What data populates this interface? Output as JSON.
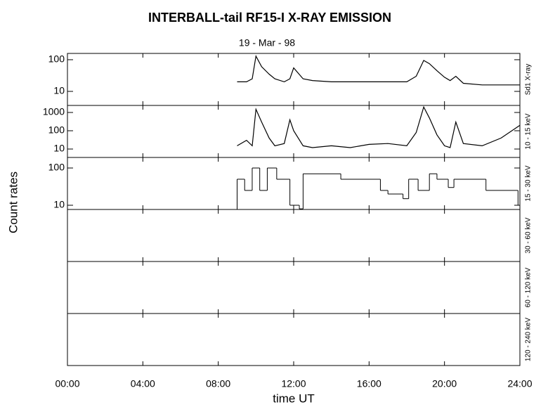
{
  "chart_data": {
    "type": "line",
    "title": "INTERBALL-tail  RF15-I   X-RAY  EMISSION",
    "subtitle": "19 - Mar - 98",
    "xlabel": "time UT",
    "ylabel": "Count  rates",
    "xlim": [
      0,
      24
    ],
    "xticks": [
      {
        "value": 0,
        "label": "00:00"
      },
      {
        "value": 4,
        "label": "04:00"
      },
      {
        "value": 8,
        "label": "08:00"
      },
      {
        "value": 12,
        "label": "12:00"
      },
      {
        "value": 16,
        "label": "16:00"
      },
      {
        "value": 20,
        "label": "20:00"
      },
      {
        "value": 24,
        "label": "24:00"
      }
    ],
    "color": "#000000",
    "log_y": true,
    "panels": [
      {
        "type": "line",
        "label": "Sd1  X-ray",
        "ylim": [
          3.6,
          158
        ],
        "yticks": [
          10,
          100
        ],
        "x": [
          9.0,
          9.5,
          9.8,
          10.0,
          10.3,
          10.7,
          11.0,
          11.5,
          11.8,
          12.0,
          12.5,
          13,
          14,
          15,
          16,
          17,
          18,
          18.5,
          18.9,
          19.2,
          19.6,
          20.0,
          20.3,
          20.6,
          21,
          22,
          23,
          24
        ],
        "values": [
          20,
          20,
          25,
          130,
          60,
          35,
          25,
          20,
          25,
          55,
          25,
          22,
          20,
          20,
          20,
          20,
          20,
          30,
          95,
          75,
          45,
          28,
          22,
          30,
          18,
          16,
          16,
          16
        ]
      },
      {
        "type": "line",
        "label": "10 - 15 keV",
        "ylim": [
          3.46,
          2425
        ],
        "yticks": [
          10,
          100,
          1000
        ],
        "x": [
          9.0,
          9.5,
          9.8,
          10.0,
          10.3,
          10.7,
          11.0,
          11.5,
          11.8,
          12.0,
          12.5,
          13,
          14,
          15,
          16,
          17,
          18,
          18.5,
          18.9,
          19.2,
          19.6,
          20.0,
          20.3,
          20.6,
          21,
          22,
          23,
          24
        ],
        "values": [
          15,
          30,
          15,
          1500,
          300,
          40,
          15,
          20,
          400,
          100,
          15,
          12,
          15,
          12,
          18,
          20,
          15,
          80,
          2000,
          500,
          60,
          15,
          12,
          300,
          20,
          15,
          40,
          200
        ]
      },
      {
        "type": "step",
        "label": "15 - 30 keV",
        "ylim": [
          7.7,
          192
        ],
        "yticks": [
          10,
          100
        ],
        "x": [
          9.0,
          9.4,
          9.8,
          10.2,
          10.6,
          11.1,
          11.8,
          12.3,
          12.5,
          14.5,
          16.6,
          17.0,
          17.8,
          18.1,
          18.6,
          19.2,
          19.6,
          20.2,
          20.5,
          22.2,
          23.9
        ],
        "values": [
          50,
          25,
          100,
          25,
          100,
          50,
          10,
          8,
          70,
          50,
          25,
          20,
          15,
          50,
          25,
          70,
          50,
          30,
          50,
          25,
          10
        ]
      },
      {
        "type": "line",
        "label": "30 - 60 keV"
      },
      {
        "type": "line",
        "label": "60 - 120 keV"
      },
      {
        "type": "line",
        "label": "120 - 240 keV"
      }
    ]
  }
}
